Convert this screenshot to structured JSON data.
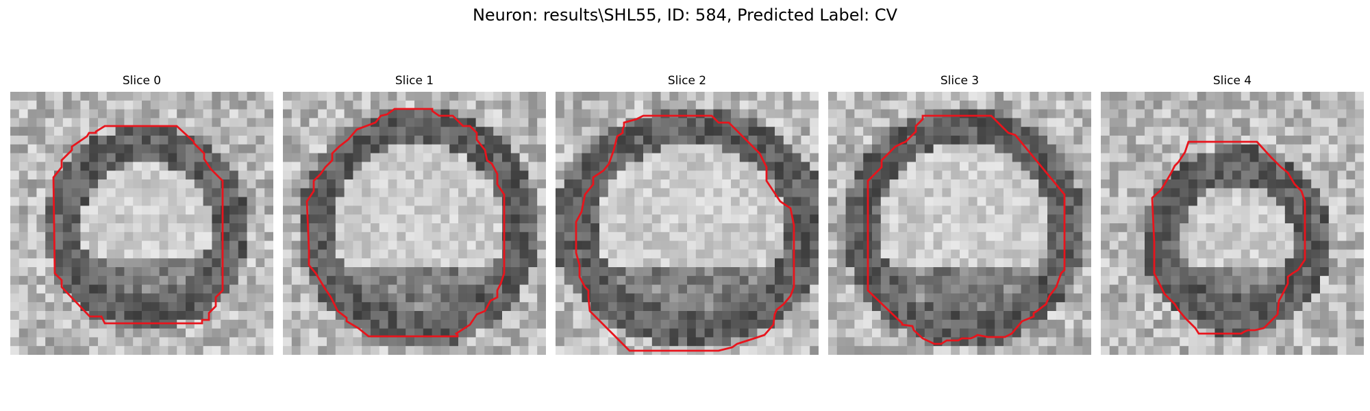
{
  "figure": {
    "title": "Neuron: results\\SHL55, ID: 584, Predicted Label: CV"
  },
  "colors": {
    "contour": "#e8141c",
    "background": "#ffffff"
  },
  "panels": [
    {
      "title": "Slice 0",
      "seed": 11,
      "contour_shape": "octagon-tall"
    },
    {
      "title": "Slice 1",
      "seed": 23,
      "contour_shape": "octagon-large"
    },
    {
      "title": "Slice 2",
      "seed": 37,
      "contour_shape": "octagon-wide"
    },
    {
      "title": "Slice 3",
      "seed": 41,
      "contour_shape": "octagon-large"
    },
    {
      "title": "Slice 4",
      "seed": 53,
      "contour_shape": "octagon-small"
    }
  ]
}
